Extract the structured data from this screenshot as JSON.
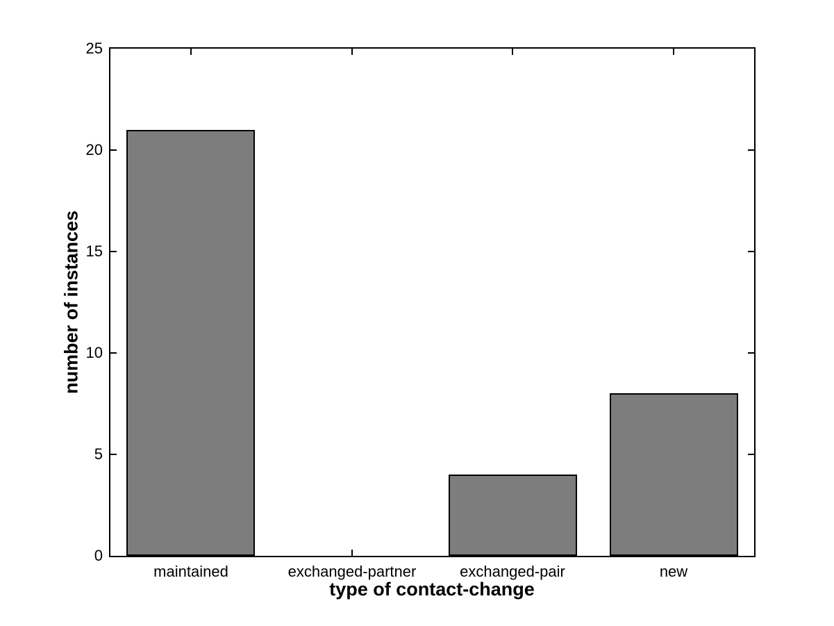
{
  "chart_data": {
    "type": "bar",
    "title": "",
    "categories": [
      "maintained",
      "exchanged-partner",
      "exchanged-pair",
      "new"
    ],
    "values": [
      21,
      0,
      4,
      8
    ],
    "xlabel": "type of contact-change",
    "ylabel": "number of instances",
    "ylim": [
      0,
      25
    ],
    "yticks": [
      0,
      5,
      10,
      15,
      20,
      25
    ],
    "grid": false,
    "legend": "none",
    "bar_color": "#7d7d7d",
    "bar_edge_color": "#000000",
    "axis_color": "#000000",
    "background_color": "#ffffff"
  }
}
